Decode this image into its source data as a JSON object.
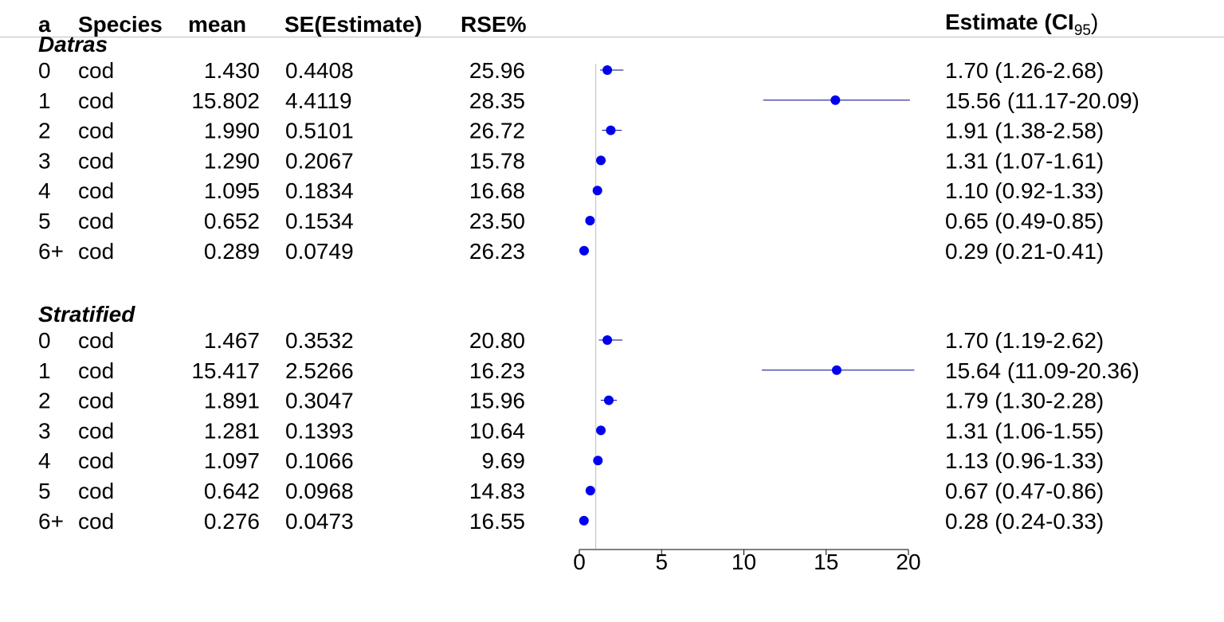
{
  "colors": {
    "point": "#0000ee",
    "ci_line": "#00008b",
    "axis": "#000000",
    "ref_line": "#bdbdbd",
    "header_rule": "#bdbdbd"
  },
  "headers": {
    "a": "a",
    "species": "Species",
    "mean": "mean",
    "se": "SE(Estimate)",
    "rse": "RSE%",
    "estimate": "Estimate (CI",
    "estimate_sub": "95",
    "estimate_close": ")"
  },
  "chart_data": {
    "type": "forest",
    "xlim": [
      0,
      20
    ],
    "x_ticks": [
      "0",
      "5",
      "10",
      "15",
      "20"
    ],
    "reference_line": 1,
    "groups": [
      {
        "name": "Datras",
        "rows": [
          {
            "a": "0",
            "species": "cod",
            "mean": "1.430",
            "se": "0.4408",
            "rse": "25.96",
            "estimate": 1.7,
            "lo": 1.26,
            "hi": 2.68,
            "label": "1.70 (1.26-2.68)"
          },
          {
            "a": "1",
            "species": "cod",
            "mean": "15.802",
            "se": "4.4119",
            "rse": "28.35",
            "estimate": 15.56,
            "lo": 11.17,
            "hi": 20.09,
            "label": "15.56 (11.17-20.09)"
          },
          {
            "a": "2",
            "species": "cod",
            "mean": "1.990",
            "se": "0.5101",
            "rse": "26.72",
            "estimate": 1.91,
            "lo": 1.38,
            "hi": 2.58,
            "label": "1.91 (1.38-2.58)"
          },
          {
            "a": "3",
            "species": "cod",
            "mean": "1.290",
            "se": "0.2067",
            "rse": "15.78",
            "estimate": 1.31,
            "lo": 1.07,
            "hi": 1.61,
            "label": "1.31 (1.07-1.61)"
          },
          {
            "a": "4",
            "species": "cod",
            "mean": "1.095",
            "se": "0.1834",
            "rse": "16.68",
            "estimate": 1.1,
            "lo": 0.92,
            "hi": 1.33,
            "label": "1.10 (0.92-1.33)"
          },
          {
            "a": "5",
            "species": "cod",
            "mean": "0.652",
            "se": "0.1534",
            "rse": "23.50",
            "estimate": 0.65,
            "lo": 0.49,
            "hi": 0.85,
            "label": "0.65 (0.49-0.85)"
          },
          {
            "a": "6+",
            "species": "cod",
            "mean": "0.289",
            "se": "0.0749",
            "rse": "26.23",
            "estimate": 0.29,
            "lo": 0.21,
            "hi": 0.41,
            "label": "0.29 (0.21-0.41)"
          }
        ]
      },
      {
        "name": "Stratified",
        "rows": [
          {
            "a": "0",
            "species": "cod",
            "mean": "1.467",
            "se": "0.3532",
            "rse": "20.80",
            "estimate": 1.7,
            "lo": 1.19,
            "hi": 2.62,
            "label": "1.70 (1.19-2.62)"
          },
          {
            "a": "1",
            "species": "cod",
            "mean": "15.417",
            "se": "2.5266",
            "rse": "16.23",
            "estimate": 15.64,
            "lo": 11.09,
            "hi": 20.36,
            "label": "15.64 (11.09-20.36)"
          },
          {
            "a": "2",
            "species": "cod",
            "mean": "1.891",
            "se": "0.3047",
            "rse": "15.96",
            "estimate": 1.79,
            "lo": 1.3,
            "hi": 2.28,
            "label": "1.79 (1.30-2.28)"
          },
          {
            "a": "3",
            "species": "cod",
            "mean": "1.281",
            "se": "0.1393",
            "rse": "10.64",
            "estimate": 1.31,
            "lo": 1.06,
            "hi": 1.55,
            "label": "1.31 (1.06-1.55)"
          },
          {
            "a": "4",
            "species": "cod",
            "mean": "1.097",
            "se": "0.1066",
            "rse": "9.69",
            "estimate": 1.13,
            "lo": 0.96,
            "hi": 1.33,
            "label": "1.13 (0.96-1.33)"
          },
          {
            "a": "5",
            "species": "cod",
            "mean": "0.642",
            "se": "0.0968",
            "rse": "14.83",
            "estimate": 0.67,
            "lo": 0.47,
            "hi": 0.86,
            "label": "0.67 (0.47-0.86)"
          },
          {
            "a": "6+",
            "species": "cod",
            "mean": "0.276",
            "se": "0.0473",
            "rse": "16.55",
            "estimate": 0.28,
            "lo": 0.24,
            "hi": 0.33,
            "label": "0.28 (0.24-0.33)"
          }
        ]
      }
    ]
  }
}
